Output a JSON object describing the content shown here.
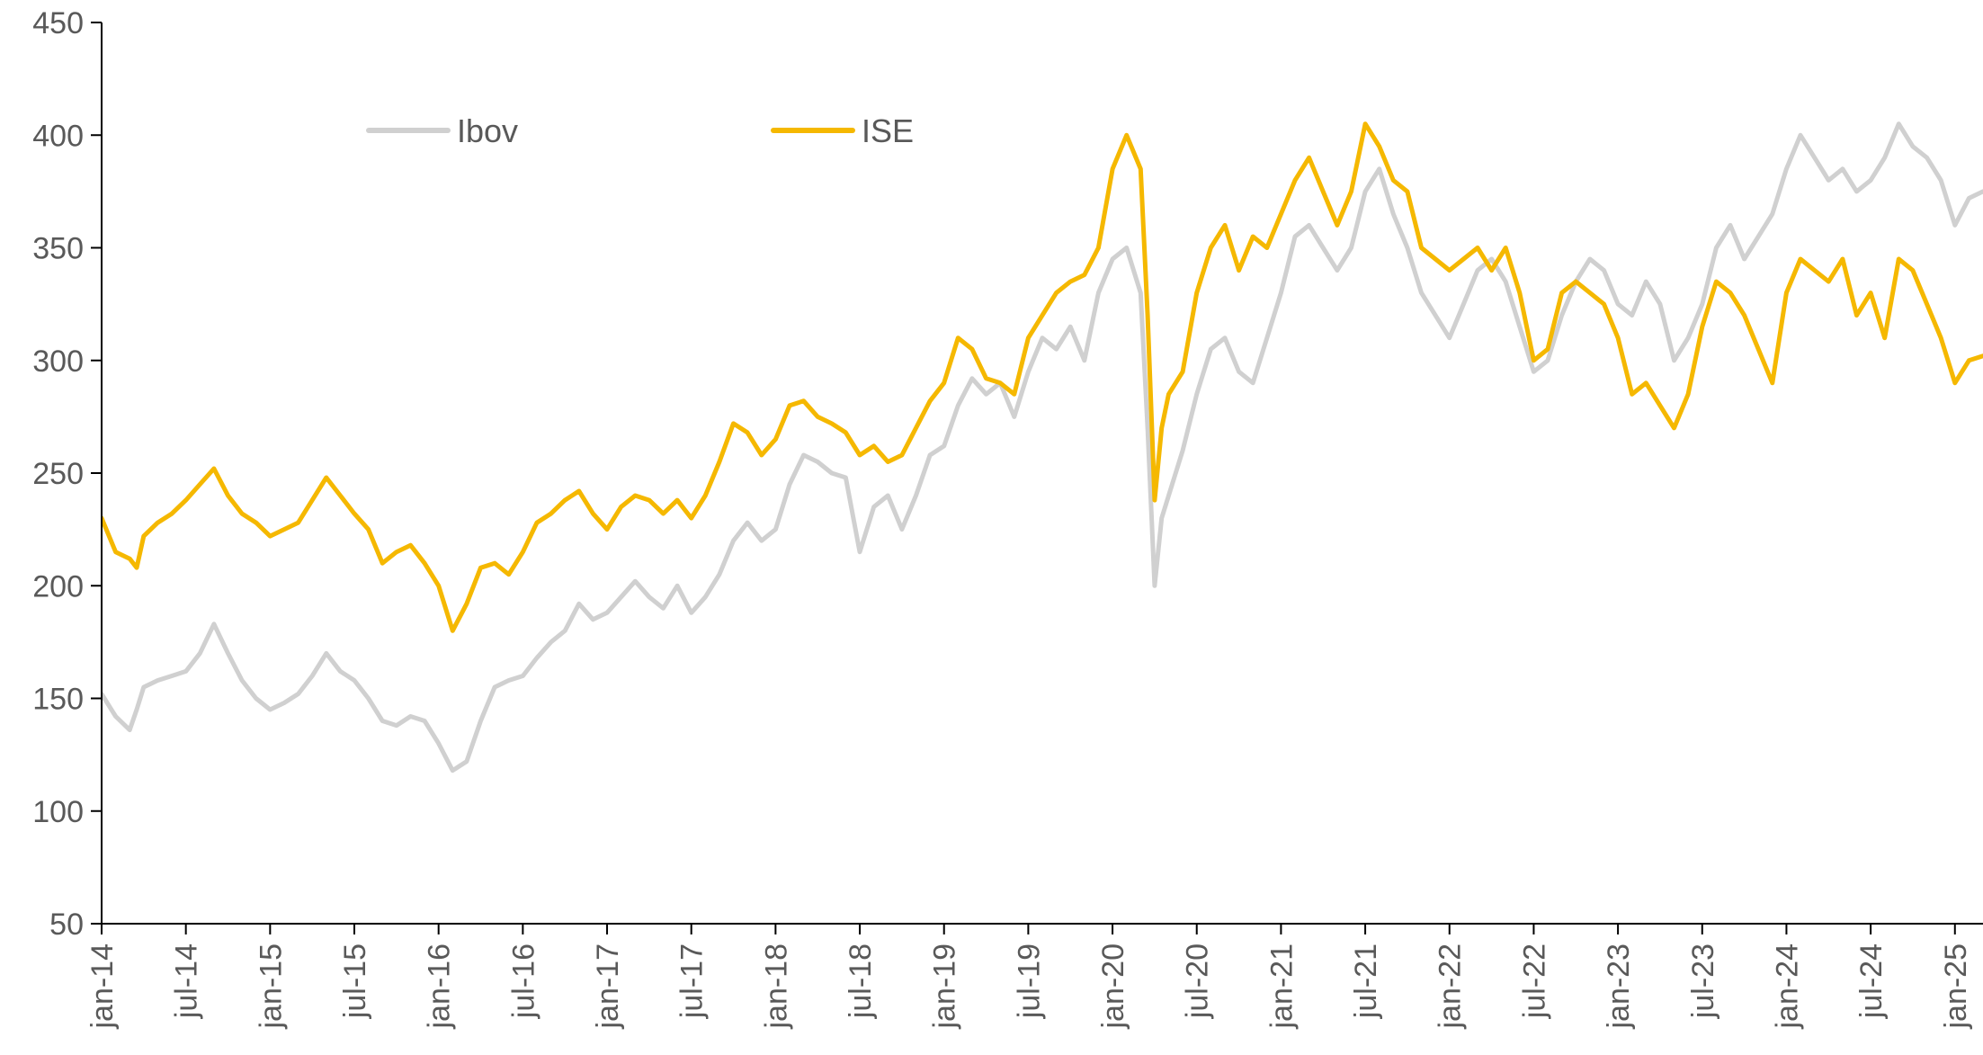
{
  "chart_data": {
    "type": "line",
    "title": "",
    "xlabel": "",
    "ylabel": "",
    "ylim": [
      50,
      450
    ],
    "yticks": [
      50,
      100,
      150,
      200,
      250,
      300,
      350,
      400,
      450
    ],
    "xlim": [
      0,
      134
    ],
    "xticks": [
      {
        "x": 0,
        "label": "jan-14"
      },
      {
        "x": 6,
        "label": "jul-14"
      },
      {
        "x": 12,
        "label": "jan-15"
      },
      {
        "x": 18,
        "label": "jul-15"
      },
      {
        "x": 24,
        "label": "jan-16"
      },
      {
        "x": 30,
        "label": "jul-16"
      },
      {
        "x": 36,
        "label": "jan-17"
      },
      {
        "x": 42,
        "label": "jul-17"
      },
      {
        "x": 48,
        "label": "jan-18"
      },
      {
        "x": 54,
        "label": "jul-18"
      },
      {
        "x": 60,
        "label": "jan-19"
      },
      {
        "x": 66,
        "label": "jul-19"
      },
      {
        "x": 72,
        "label": "jan-20"
      },
      {
        "x": 78,
        "label": "jul-20"
      },
      {
        "x": 84,
        "label": "jan-21"
      },
      {
        "x": 90,
        "label": "jul-21"
      },
      {
        "x": 96,
        "label": "jan-22"
      },
      {
        "x": 102,
        "label": "jul-22"
      },
      {
        "x": 108,
        "label": "jan-23"
      },
      {
        "x": 114,
        "label": "jul-23"
      },
      {
        "x": 120,
        "label": "jan-24"
      },
      {
        "x": 126,
        "label": "jul-24"
      },
      {
        "x": 132,
        "label": "jan-25"
      }
    ],
    "grid": false,
    "legend_position": "top-left",
    "series": [
      {
        "name": "Ibov",
        "color": "#d0d0d0",
        "points": [
          [
            0,
            152
          ],
          [
            1,
            142
          ],
          [
            2,
            136
          ],
          [
            2.5,
            145
          ],
          [
            3,
            155
          ],
          [
            4,
            158
          ],
          [
            5,
            160
          ],
          [
            6,
            162
          ],
          [
            7,
            170
          ],
          [
            8,
            183
          ],
          [
            9,
            170
          ],
          [
            10,
            158
          ],
          [
            11,
            150
          ],
          [
            12,
            145
          ],
          [
            13,
            148
          ],
          [
            14,
            152
          ],
          [
            15,
            160
          ],
          [
            16,
            170
          ],
          [
            17,
            162
          ],
          [
            18,
            158
          ],
          [
            19,
            150
          ],
          [
            20,
            140
          ],
          [
            21,
            138
          ],
          [
            22,
            142
          ],
          [
            23,
            140
          ],
          [
            24,
            130
          ],
          [
            25,
            118
          ],
          [
            26,
            122
          ],
          [
            27,
            140
          ],
          [
            28,
            155
          ],
          [
            29,
            158
          ],
          [
            30,
            160
          ],
          [
            31,
            168
          ],
          [
            32,
            175
          ],
          [
            33,
            180
          ],
          [
            34,
            192
          ],
          [
            35,
            185
          ],
          [
            36,
            188
          ],
          [
            37,
            195
          ],
          [
            38,
            202
          ],
          [
            39,
            195
          ],
          [
            40,
            190
          ],
          [
            41,
            200
          ],
          [
            42,
            188
          ],
          [
            43,
            195
          ],
          [
            44,
            205
          ],
          [
            45,
            220
          ],
          [
            46,
            228
          ],
          [
            47,
            220
          ],
          [
            48,
            225
          ],
          [
            49,
            245
          ],
          [
            50,
            258
          ],
          [
            51,
            255
          ],
          [
            52,
            250
          ],
          [
            53,
            248
          ],
          [
            54,
            215
          ],
          [
            55,
            235
          ],
          [
            56,
            240
          ],
          [
            57,
            225
          ],
          [
            58,
            240
          ],
          [
            59,
            258
          ],
          [
            60,
            262
          ],
          [
            61,
            280
          ],
          [
            62,
            292
          ],
          [
            63,
            285
          ],
          [
            64,
            290
          ],
          [
            65,
            275
          ],
          [
            66,
            295
          ],
          [
            67,
            310
          ],
          [
            68,
            305
          ],
          [
            69,
            315
          ],
          [
            70,
            300
          ],
          [
            71,
            330
          ],
          [
            72,
            345
          ],
          [
            73,
            350
          ],
          [
            74,
            330
          ],
          [
            74.5,
            270
          ],
          [
            75,
            200
          ],
          [
            75.5,
            230
          ],
          [
            76,
            240
          ],
          [
            77,
            260
          ],
          [
            78,
            285
          ],
          [
            79,
            305
          ],
          [
            80,
            310
          ],
          [
            81,
            295
          ],
          [
            82,
            290
          ],
          [
            83,
            310
          ],
          [
            84,
            330
          ],
          [
            85,
            355
          ],
          [
            86,
            360
          ],
          [
            87,
            350
          ],
          [
            88,
            340
          ],
          [
            89,
            350
          ],
          [
            90,
            375
          ],
          [
            91,
            385
          ],
          [
            92,
            365
          ],
          [
            93,
            350
          ],
          [
            94,
            330
          ],
          [
            95,
            320
          ],
          [
            96,
            310
          ],
          [
            97,
            325
          ],
          [
            98,
            340
          ],
          [
            99,
            345
          ],
          [
            100,
            335
          ],
          [
            101,
            315
          ],
          [
            102,
            295
          ],
          [
            103,
            300
          ],
          [
            104,
            320
          ],
          [
            105,
            335
          ],
          [
            106,
            345
          ],
          [
            107,
            340
          ],
          [
            108,
            325
          ],
          [
            109,
            320
          ],
          [
            110,
            335
          ],
          [
            111,
            325
          ],
          [
            112,
            300
          ],
          [
            113,
            310
          ],
          [
            114,
            325
          ],
          [
            115,
            350
          ],
          [
            116,
            360
          ],
          [
            117,
            345
          ],
          [
            118,
            355
          ],
          [
            119,
            365
          ],
          [
            120,
            385
          ],
          [
            121,
            400
          ],
          [
            122,
            390
          ],
          [
            123,
            380
          ],
          [
            124,
            385
          ],
          [
            125,
            375
          ],
          [
            126,
            380
          ],
          [
            127,
            390
          ],
          [
            128,
            405
          ],
          [
            129,
            395
          ],
          [
            130,
            390
          ],
          [
            131,
            380
          ],
          [
            132,
            360
          ],
          [
            133,
            372
          ],
          [
            134,
            375
          ]
        ]
      },
      {
        "name": "ISE",
        "color": "#f5b800",
        "points": [
          [
            0,
            230
          ],
          [
            1,
            215
          ],
          [
            2,
            212
          ],
          [
            2.5,
            208
          ],
          [
            3,
            222
          ],
          [
            4,
            228
          ],
          [
            5,
            232
          ],
          [
            6,
            238
          ],
          [
            7,
            245
          ],
          [
            8,
            252
          ],
          [
            9,
            240
          ],
          [
            10,
            232
          ],
          [
            11,
            228
          ],
          [
            12,
            222
          ],
          [
            13,
            225
          ],
          [
            14,
            228
          ],
          [
            15,
            238
          ],
          [
            16,
            248
          ],
          [
            17,
            240
          ],
          [
            18,
            232
          ],
          [
            19,
            225
          ],
          [
            20,
            210
          ],
          [
            21,
            215
          ],
          [
            22,
            218
          ],
          [
            23,
            210
          ],
          [
            24,
            200
          ],
          [
            25,
            180
          ],
          [
            26,
            192
          ],
          [
            27,
            208
          ],
          [
            28,
            210
          ],
          [
            29,
            205
          ],
          [
            30,
            215
          ],
          [
            31,
            228
          ],
          [
            32,
            232
          ],
          [
            33,
            238
          ],
          [
            34,
            242
          ],
          [
            35,
            232
          ],
          [
            36,
            225
          ],
          [
            37,
            235
          ],
          [
            38,
            240
          ],
          [
            39,
            238
          ],
          [
            40,
            232
          ],
          [
            41,
            238
          ],
          [
            42,
            230
          ],
          [
            43,
            240
          ],
          [
            44,
            255
          ],
          [
            45,
            272
          ],
          [
            46,
            268
          ],
          [
            47,
            258
          ],
          [
            48,
            265
          ],
          [
            49,
            280
          ],
          [
            50,
            282
          ],
          [
            51,
            275
          ],
          [
            52,
            272
          ],
          [
            53,
            268
          ],
          [
            54,
            258
          ],
          [
            55,
            262
          ],
          [
            56,
            255
          ],
          [
            57,
            258
          ],
          [
            58,
            270
          ],
          [
            59,
            282
          ],
          [
            60,
            290
          ],
          [
            61,
            310
          ],
          [
            62,
            305
          ],
          [
            63,
            292
          ],
          [
            64,
            290
          ],
          [
            65,
            285
          ],
          [
            66,
            310
          ],
          [
            67,
            320
          ],
          [
            68,
            330
          ],
          [
            69,
            335
          ],
          [
            70,
            338
          ],
          [
            71,
            350
          ],
          [
            72,
            385
          ],
          [
            73,
            400
          ],
          [
            74,
            385
          ],
          [
            74.5,
            320
          ],
          [
            75,
            238
          ],
          [
            75.5,
            270
          ],
          [
            76,
            285
          ],
          [
            77,
            295
          ],
          [
            78,
            330
          ],
          [
            79,
            350
          ],
          [
            80,
            360
          ],
          [
            81,
            340
          ],
          [
            82,
            355
          ],
          [
            83,
            350
          ],
          [
            84,
            365
          ],
          [
            85,
            380
          ],
          [
            86,
            390
          ],
          [
            87,
            375
          ],
          [
            88,
            360
          ],
          [
            89,
            375
          ],
          [
            90,
            405
          ],
          [
            91,
            395
          ],
          [
            92,
            380
          ],
          [
            93,
            375
          ],
          [
            94,
            350
          ],
          [
            95,
            345
          ],
          [
            96,
            340
          ],
          [
            97,
            345
          ],
          [
            98,
            350
          ],
          [
            99,
            340
          ],
          [
            100,
            350
          ],
          [
            101,
            330
          ],
          [
            102,
            300
          ],
          [
            103,
            305
          ],
          [
            104,
            330
          ],
          [
            105,
            335
          ],
          [
            106,
            330
          ],
          [
            107,
            325
          ],
          [
            108,
            310
          ],
          [
            109,
            285
          ],
          [
            110,
            290
          ],
          [
            111,
            280
          ],
          [
            112,
            270
          ],
          [
            113,
            285
          ],
          [
            114,
            315
          ],
          [
            115,
            335
          ],
          [
            116,
            330
          ],
          [
            117,
            320
          ],
          [
            118,
            305
          ],
          [
            119,
            290
          ],
          [
            120,
            330
          ],
          [
            121,
            345
          ],
          [
            122,
            340
          ],
          [
            123,
            335
          ],
          [
            124,
            345
          ],
          [
            125,
            320
          ],
          [
            126,
            330
          ],
          [
            127,
            310
          ],
          [
            128,
            345
          ],
          [
            129,
            340
          ],
          [
            130,
            325
          ],
          [
            131,
            310
          ],
          [
            132,
            290
          ],
          [
            133,
            300
          ],
          [
            134,
            302
          ]
        ]
      }
    ]
  }
}
